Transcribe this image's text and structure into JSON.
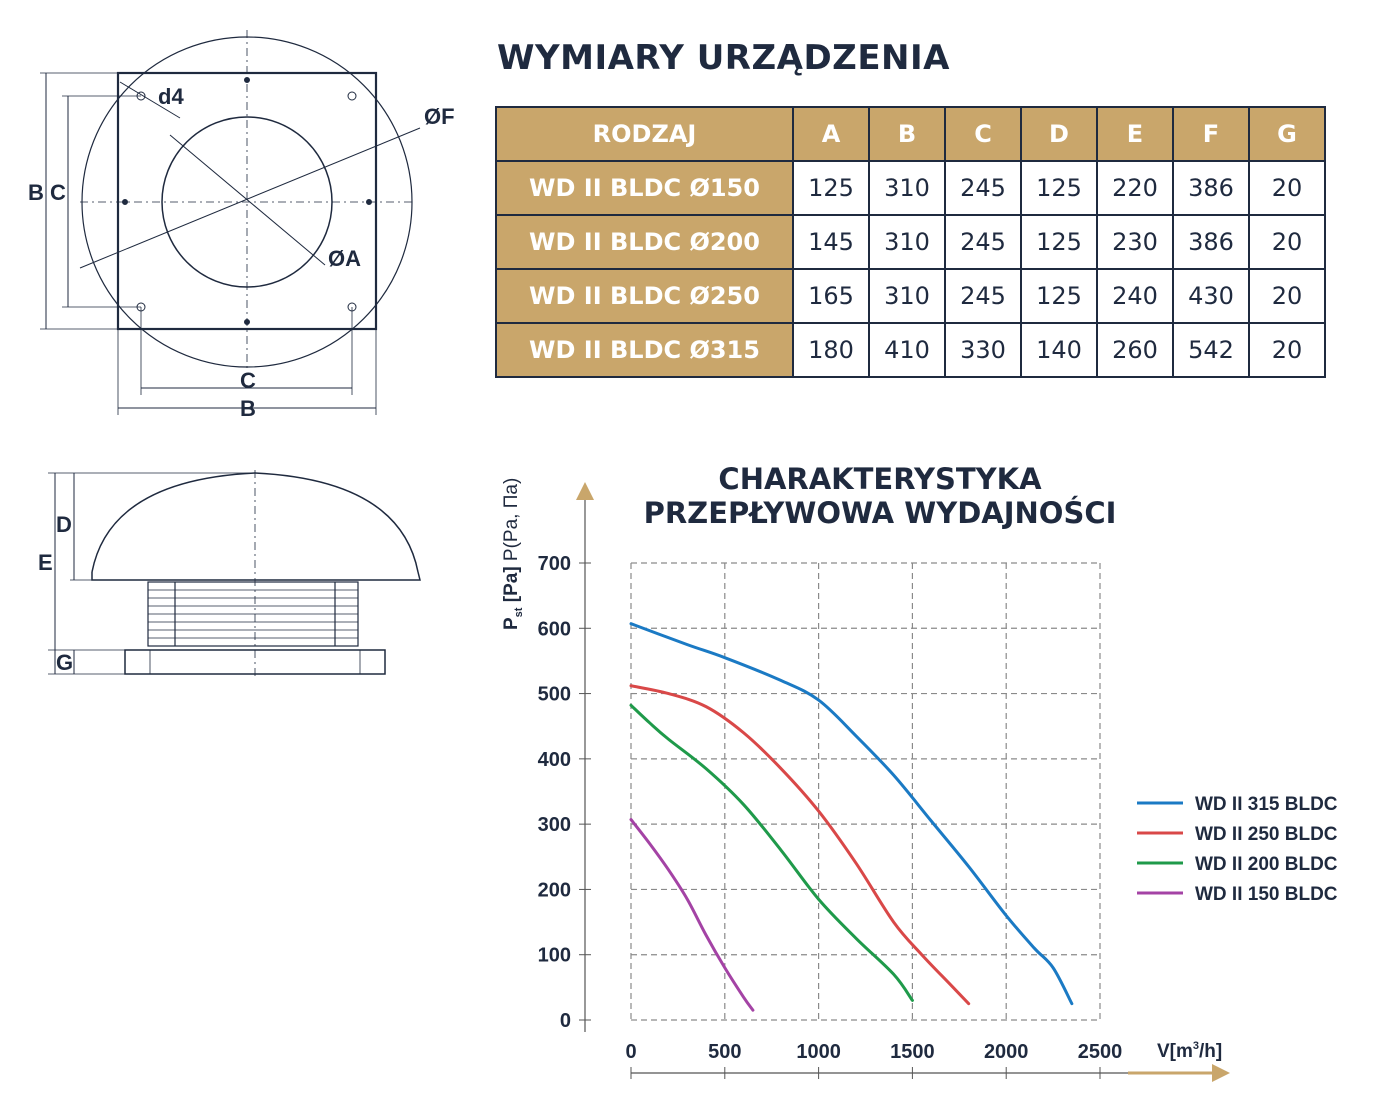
{
  "drawing_labels": {
    "d4": "d4",
    "phiF": "ØF",
    "phiA": "ØA",
    "B": "B",
    "C": "C",
    "D": "D",
    "E": "E",
    "G": "G"
  },
  "dimensions": {
    "title": "WYMIARY URZĄDZENIA",
    "header": [
      "RODZAJ",
      "A",
      "B",
      "C",
      "D",
      "E",
      "F",
      "G"
    ],
    "rows": [
      {
        "name": "WD II BLDC Ø150",
        "values": [
          "125",
          "310",
          "245",
          "125",
          "220",
          "386",
          "20"
        ]
      },
      {
        "name": "WD II BLDC Ø200",
        "values": [
          "145",
          "310",
          "245",
          "125",
          "230",
          "386",
          "20"
        ]
      },
      {
        "name": "WD II BLDC Ø250",
        "values": [
          "165",
          "310",
          "245",
          "125",
          "240",
          "430",
          "20"
        ]
      },
      {
        "name": "WD II BLDC Ø315",
        "values": [
          "180",
          "410",
          "330",
          "140",
          "260",
          "542",
          "20"
        ]
      }
    ]
  },
  "chart_data": {
    "type": "line",
    "title_line1": "CHARAKTERYSTYKA",
    "title_line2": "PRZEPŁYWOWA WYDAJNOŚCI",
    "ylabel": "P",
    "ylabel_sub": "st",
    "ylabel_unit": "[Pa]",
    "ylabel_alt": "P(Pa, Па)",
    "xlabel": "V[m",
    "xlabel_sup": "3",
    "xlabel_tail": "/h]",
    "xlim": [
      0,
      2500
    ],
    "ylim": [
      0,
      700
    ],
    "xticks": [
      "0",
      "500",
      "1000",
      "1500",
      "2000",
      "2500"
    ],
    "yticks": [
      "0",
      "100",
      "200",
      "300",
      "400",
      "500",
      "600",
      "700"
    ],
    "grid": true,
    "legend_position": "right",
    "series": [
      {
        "name": "WD II 315 BLDC",
        "color": "#1b7ac4",
        "x": [
          0,
          300,
          500,
          800,
          1000,
          1200,
          1400,
          1600,
          1800,
          2000,
          2150,
          2250,
          2350
        ],
        "y": [
          607,
          575,
          555,
          520,
          490,
          435,
          375,
          305,
          235,
          160,
          110,
          80,
          25
        ]
      },
      {
        "name": "WD II 250 BLDC",
        "color": "#d94848",
        "x": [
          0,
          200,
          400,
          600,
          800,
          1000,
          1200,
          1400,
          1550,
          1700,
          1800
        ],
        "y": [
          512,
          500,
          480,
          440,
          385,
          320,
          240,
          150,
          100,
          55,
          25
        ]
      },
      {
        "name": "WD II 200 BLDC",
        "color": "#1f9a4a",
        "x": [
          0,
          100,
          200,
          400,
          600,
          800,
          1000,
          1200,
          1400,
          1500
        ],
        "y": [
          482,
          455,
          430,
          385,
          330,
          260,
          185,
          125,
          70,
          30
        ]
      },
      {
        "name": "WD II 150 BLDC",
        "color": "#a443a5",
        "x": [
          0,
          100,
          200,
          300,
          400,
          500,
          600,
          650
        ],
        "y": [
          307,
          270,
          230,
          185,
          130,
          80,
          35,
          15
        ]
      }
    ]
  }
}
